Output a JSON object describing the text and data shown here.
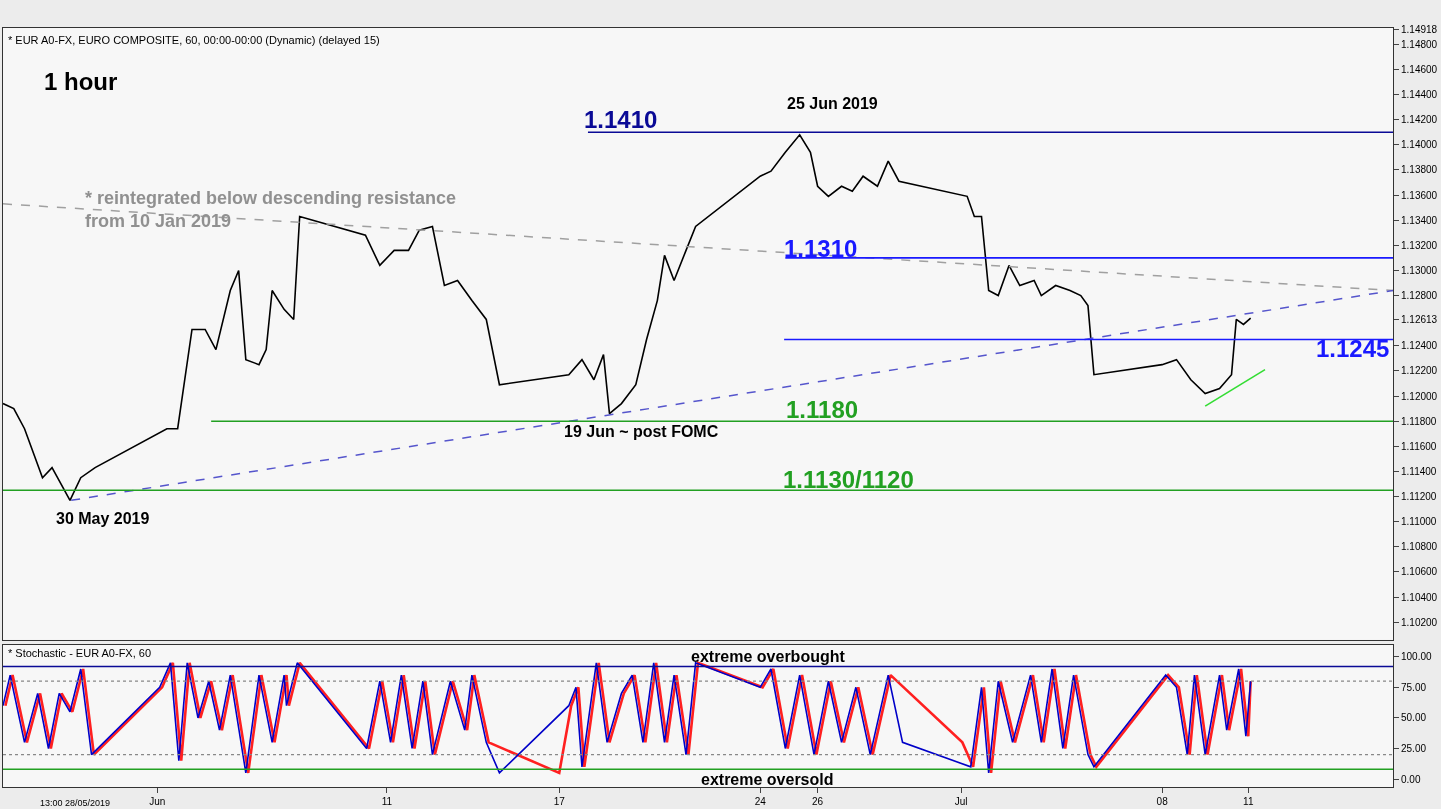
{
  "chart_data": [
    {
      "type": "line",
      "xlim": [
        "2019-05-28T15:00",
        "2019-07-16T01:00"
      ],
      "ylim": [
        1.1006,
        1.1493
      ],
      "tick_labels": "y",
      "yticks": [
        {
          "value": 1.102,
          "label": "1.10200"
        },
        {
          "value": 1.104,
          "label": "1.10400"
        },
        {
          "value": 1.106,
          "label": "1.10600"
        },
        {
          "value": 1.108,
          "label": "1.10800"
        },
        {
          "value": 1.11,
          "label": "1.11000"
        },
        {
          "value": 1.112,
          "label": "1.11200"
        },
        {
          "value": 1.114,
          "label": "1.11400"
        },
        {
          "value": 1.116,
          "label": "1.11600"
        },
        {
          "value": 1.118,
          "label": "1.11800"
        },
        {
          "value": 1.12,
          "label": "1.12000"
        },
        {
          "value": 1.122,
          "label": "1.12200"
        },
        {
          "value": 1.124,
          "label": "1.12400"
        },
        {
          "value": 1.12613,
          "label": "1.12613"
        },
        {
          "value": 1.128,
          "label": "1.12800"
        },
        {
          "value": 1.13,
          "label": "1.13000"
        },
        {
          "value": 1.132,
          "label": "1.13200"
        },
        {
          "value": 1.134,
          "label": "1.13400"
        },
        {
          "value": 1.136,
          "label": "1.13600"
        },
        {
          "value": 1.138,
          "label": "1.13800"
        },
        {
          "value": 1.14,
          "label": "1.14000"
        },
        {
          "value": 1.142,
          "label": "1.14200"
        },
        {
          "value": 1.144,
          "label": "1.14400"
        },
        {
          "value": 1.146,
          "label": "1.14600"
        },
        {
          "value": 1.148,
          "label": "1.14800"
        },
        {
          "value": 1.14918,
          "label": "1.14918"
        }
      ],
      "series": [
        {
          "color": "#000000",
          "x": [
            "2019-05-28T15:00",
            "2019-05-29T00:00",
            "2019-05-29T09:00",
            "2019-05-30T00:00",
            "2019-05-30T08:00",
            "2019-05-30T23:00",
            "2019-05-31T08:00",
            "2019-05-31T20:00",
            "2019-06-03T08:00",
            "2019-06-03T17:00",
            "2019-06-04T05:00",
            "2019-06-04T16:00",
            "2019-06-05T01:00",
            "2019-06-05T13:00",
            "2019-06-05T20:00",
            "2019-06-06T02:00",
            "2019-06-06T13:00",
            "2019-06-06T19:00",
            "2019-06-07T00:00",
            "2019-06-07T10:00",
            "2019-06-07T18:00",
            "2019-06-07T23:00",
            "2019-06-10T06:00",
            "2019-06-10T18:00",
            "2019-06-11T06:00",
            "2019-06-11T18:00",
            "2019-06-12T03:00",
            "2019-06-12T14:00",
            "2019-06-13T00:00",
            "2019-06-13T11:00",
            "2019-06-13T23:00",
            "2019-06-14T11:00",
            "2019-06-14T22:00",
            "2019-06-17T08:00",
            "2019-06-17T19:00",
            "2019-06-18T05:00",
            "2019-06-18T13:00",
            "2019-06-18T18:00",
            "2019-06-19T04:00",
            "2019-06-19T16:00",
            "2019-06-20T01:00",
            "2019-06-20T10:00",
            "2019-06-20T16:00",
            "2019-06-21T00:00",
            "2019-06-21T10:00",
            "2019-06-21T18:00",
            "2019-06-24T00:00",
            "2019-06-24T09:00",
            "2019-06-24T21:00",
            "2019-06-25T09:00",
            "2019-06-25T18:00",
            "2019-06-26T00:00",
            "2019-06-26T09:00",
            "2019-06-26T20:00",
            "2019-06-27T05:00",
            "2019-06-27T14:00",
            "2019-06-28T02:00",
            "2019-06-28T11:00",
            "2019-06-28T20:00",
            "2019-07-01T05:00",
            "2019-07-01T11:00",
            "2019-07-01T17:00",
            "2019-07-01T23:00",
            "2019-07-02T07:00",
            "2019-07-02T16:00",
            "2019-07-03T01:00",
            "2019-07-03T13:00",
            "2019-07-03T19:00",
            "2019-07-04T07:00",
            "2019-07-04T19:00",
            "2019-07-05T04:00",
            "2019-07-05T10:00",
            "2019-07-05T15:00",
            "2019-07-08T00:00",
            "2019-07-08T12:00",
            "2019-07-09T00:00",
            "2019-07-09T12:00",
            "2019-07-10T00:00",
            "2019-07-10T10:00",
            "2019-07-10T14:00",
            "2019-07-10T20:00",
            "2019-07-11T02:00"
          ],
          "values": [
            1.1194,
            1.119,
            1.1174,
            1.1135,
            1.1143,
            1.1117,
            1.1135,
            1.1143,
            1.1174,
            1.1174,
            1.1253,
            1.1253,
            1.1237,
            1.1284,
            1.13,
            1.1229,
            1.1225,
            1.1237,
            1.1284,
            1.1269,
            1.1261,
            1.1343,
            1.1328,
            1.1304,
            1.1316,
            1.1316,
            1.1332,
            1.1335,
            1.1288,
            1.1292,
            1.1276,
            1.1261,
            1.1209,
            1.1217,
            1.1229,
            1.1213,
            1.1233,
            1.1186,
            1.1194,
            1.1209,
            1.1245,
            1.1276,
            1.1312,
            1.1292,
            1.1316,
            1.1335,
            1.1375,
            1.1379,
            1.1394,
            1.1408,
            1.1394,
            1.1367,
            1.1359,
            1.1367,
            1.1363,
            1.1375,
            1.1367,
            1.1387,
            1.1371,
            1.1359,
            1.1343,
            1.1343,
            1.1284,
            1.128,
            1.1304,
            1.1288,
            1.1292,
            1.128,
            1.1288,
            1.1284,
            1.128,
            1.1272,
            1.1217,
            1.1225,
            1.1229,
            1.1213,
            1.1202,
            1.1206,
            1.1217,
            1.1261,
            1.1257,
            1.1262
          ]
        },
        {
          "color": "#a0a0a0",
          "line_style": "dashed",
          "x": [
            "2019-05-28T15:00",
            "2019-07-16T01:00"
          ],
          "values": [
            1.1353,
            1.1284
          ]
        },
        {
          "color": "#5555cc",
          "line_style": "dashed",
          "x": [
            "2019-05-31T00:00",
            "2019-07-16T01:00"
          ],
          "values": [
            1.1117,
            1.1284
          ]
        },
        {
          "color": "#33dd33",
          "x": [
            "2019-07-09T12:00",
            "2019-07-11T14:00"
          ],
          "values": [
            1.1192,
            1.1221
          ]
        },
        {
          "color": "#0a0a96",
          "x": [
            "2019-06-18T00:00",
            "2019-07-16T01:00"
          ],
          "values": [
            1.141,
            1.141
          ]
        },
        {
          "color": "#1a1aff",
          "x": [
            "2019-06-24T21:00",
            "2019-07-16T01:00"
          ],
          "values": [
            1.131,
            1.131
          ]
        },
        {
          "color": "#1a1aff",
          "x": [
            "2019-06-24T20:00",
            "2019-07-16T01:00"
          ],
          "values": [
            1.1245,
            1.1245
          ]
        },
        {
          "color": "#22a022",
          "x": [
            "2019-06-04T21:00",
            "2019-07-16T01:00"
          ],
          "values": [
            1.118,
            1.118
          ]
        },
        {
          "color": "#22a022",
          "x": [
            "2019-05-28T15:00",
            "2019-07-16T01:00"
          ],
          "values": [
            1.1125,
            1.1125
          ]
        }
      ],
      "annotations": [
        "* EUR A0-FX, EURO COMPOSITE, 60, 00:00-00:00 (Dynamic) (delayed 15)",
        "1 hour",
        "25 Jun 2019",
        "19 Jun ~ post FOMC",
        "30 May 2019",
        "* reintegrated below descending resistance\nfrom 10 Jan 2019",
        "1.1410",
        "1.1310",
        "1.1245",
        "1.1180",
        "1.1130/1120"
      ]
    },
    {
      "type": "line",
      "xlim": [
        "2019-05-28T15:00",
        "2019-07-16T01:00"
      ],
      "ylim": [
        -6.5,
        109.8
      ],
      "xticks": [
        {
          "value": "2019-06-03",
          "label": "Jun"
        },
        {
          "value": "2019-06-11",
          "label": "11"
        },
        {
          "value": "2019-06-17",
          "label": "17"
        },
        {
          "value": "2019-06-24",
          "label": "24"
        },
        {
          "value": "2019-06-26",
          "label": "26"
        },
        {
          "value": "2019-07-01",
          "label": "Jul"
        },
        {
          "value": "2019-07-08",
          "label": "08"
        },
        {
          "value": "2019-07-11",
          "label": "11"
        }
      ],
      "yticks": [
        {
          "value": 0,
          "label": "0.00"
        },
        {
          "value": 25,
          "label": "25.00"
        },
        {
          "value": 50,
          "label": "50.00"
        },
        {
          "value": 75,
          "label": "75.00"
        },
        {
          "value": 100,
          "label": "100.00"
        }
      ],
      "series": [
        {
          "color": "#ff2020",
          "x": [
            "2019-05-28T17:00",
            "2019-05-28T23:00",
            "2019-05-29T11:00",
            "2019-05-29T22:00",
            "2019-05-30T07:00",
            "2019-05-30T16:00",
            "2019-05-31T01:00",
            "2019-05-31T10:00",
            "2019-05-31T19:00",
            "2019-06-03T04:00",
            "2019-06-03T13:00",
            "2019-06-03T20:00",
            "2019-06-04T03:00",
            "2019-06-04T12:00",
            "2019-06-04T21:00",
            "2019-06-05T06:00",
            "2019-06-05T15:00",
            "2019-06-06T04:00",
            "2019-06-06T15:00",
            "2019-06-07T02:00",
            "2019-06-07T12:00",
            "2019-06-07T14:00",
            "2019-06-07T23:00",
            "2019-06-10T09:00",
            "2019-06-10T20:00",
            "2019-06-11T05:00",
            "2019-06-11T14:00",
            "2019-06-11T23:00",
            "2019-06-12T08:00",
            "2019-06-12T16:00",
            "2019-06-13T07:00",
            "2019-06-13T19:00",
            "2019-06-14T01:00",
            "2019-06-14T13:00",
            "2019-06-17T00:00",
            "2019-06-17T10:00",
            "2019-06-17T16:00",
            "2019-06-17T21:00",
            "2019-06-18T09:00",
            "2019-06-18T18:00",
            "2019-06-19T06:00",
            "2019-06-19T15:00",
            "2019-06-20T00:00",
            "2019-06-20T09:00",
            "2019-06-20T18:00",
            "2019-06-21T02:00",
            "2019-06-21T12:00",
            "2019-06-21T20:00",
            "2019-06-24T02:00",
            "2019-06-24T11:00",
            "2019-06-24T23:00",
            "2019-06-25T11:00",
            "2019-06-25T23:00",
            "2019-06-26T11:00",
            "2019-06-26T22:00",
            "2019-06-27T10:00",
            "2019-06-27T22:00",
            "2019-06-28T13:00",
            "2019-07-01T01:00",
            "2019-07-01T10:00",
            "2019-07-01T19:00",
            "2019-07-02T01:00",
            "2019-07-02T09:00",
            "2019-07-02T21:00",
            "2019-07-03T12:00",
            "2019-07-03T21:00",
            "2019-07-04T06:00",
            "2019-07-04T15:00",
            "2019-07-05T00:00",
            "2019-07-05T12:00",
            "2019-07-05T17:00",
            "2019-07-08T05:00",
            "2019-07-08T14:00",
            "2019-07-08T23:00",
            "2019-07-09T05:00",
            "2019-07-09T14:00",
            "2019-07-10T02:00",
            "2019-07-10T08:00",
            "2019-07-10T18:00",
            "2019-07-11T00:00",
            "2019-07-11T02:00"
          ],
          "values": [
            60,
            85,
            30,
            70,
            25,
            70,
            55,
            90,
            20,
            75,
            95,
            15,
            95,
            50,
            80,
            40,
            85,
            5,
            85,
            30,
            85,
            60,
            95,
            25,
            80,
            30,
            85,
            25,
            80,
            20,
            80,
            40,
            85,
            30,
            5,
            60,
            75,
            10,
            95,
            30,
            70,
            85,
            30,
            95,
            30,
            85,
            20,
            95,
            75,
            90,
            25,
            85,
            20,
            80,
            30,
            75,
            20,
            85,
            30,
            10,
            75,
            5,
            80,
            30,
            85,
            30,
            90,
            25,
            85,
            20,
            10,
            85,
            75,
            20,
            85,
            20,
            85,
            40,
            90,
            35,
            80
          ]
        },
        {
          "color": "#0000c8",
          "x": [
            "2019-05-28T15:00",
            "2019-05-28T21:00",
            "2019-05-29T09:00",
            "2019-05-29T20:00",
            "2019-05-30T05:00",
            "2019-05-30T14:00",
            "2019-05-30T23:00",
            "2019-05-31T08:00",
            "2019-05-31T17:00",
            "2019-06-03T02:00",
            "2019-06-03T11:00",
            "2019-06-03T18:00",
            "2019-06-04T01:00",
            "2019-06-04T10:00",
            "2019-06-04T19:00",
            "2019-06-05T04:00",
            "2019-06-05T13:00",
            "2019-06-06T02:00",
            "2019-06-06T13:00",
            "2019-06-07T00:00",
            "2019-06-07T10:00",
            "2019-06-07T12:00",
            "2019-06-07T21:00",
            "2019-06-10T07:00",
            "2019-06-10T18:00",
            "2019-06-11T03:00",
            "2019-06-11T12:00",
            "2019-06-11T21:00",
            "2019-06-12T06:00",
            "2019-06-12T14:00",
            "2019-06-13T05:00",
            "2019-06-13T17:00",
            "2019-06-13T23:00",
            "2019-06-14T11:00",
            "2019-06-14T22:00",
            "2019-06-17T08:00",
            "2019-06-17T14:00",
            "2019-06-17T19:00",
            "2019-06-18T07:00",
            "2019-06-18T16:00",
            "2019-06-19T04:00",
            "2019-06-19T13:00",
            "2019-06-19T22:00",
            "2019-06-20T07:00",
            "2019-06-20T16:00",
            "2019-06-21T00:00",
            "2019-06-21T10:00",
            "2019-06-21T18:00",
            "2019-06-24T00:00",
            "2019-06-24T09:00",
            "2019-06-24T21:00",
            "2019-06-25T09:00",
            "2019-06-25T21:00",
            "2019-06-26T09:00",
            "2019-06-26T20:00",
            "2019-06-27T08:00",
            "2019-06-27T20:00",
            "2019-06-28T11:00",
            "2019-06-28T23:00",
            "2019-07-01T08:00",
            "2019-07-01T17:00",
            "2019-07-01T23:00",
            "2019-07-02T07:00",
            "2019-07-02T19:00",
            "2019-07-03T10:00",
            "2019-07-03T19:00",
            "2019-07-04T04:00",
            "2019-07-04T13:00",
            "2019-07-04T22:00",
            "2019-07-05T10:00",
            "2019-07-05T15:00",
            "2019-07-08T03:00",
            "2019-07-08T12:00",
            "2019-07-08T21:00",
            "2019-07-09T03:00",
            "2019-07-09T12:00",
            "2019-07-10T00:00",
            "2019-07-10T06:00",
            "2019-07-10T16:00",
            "2019-07-10T22:00",
            "2019-07-11T02:00"
          ],
          "values": [
            60,
            85,
            30,
            70,
            25,
            70,
            55,
            90,
            20,
            75,
            95,
            15,
            95,
            50,
            80,
            40,
            85,
            5,
            85,
            30,
            85,
            60,
            95,
            25,
            80,
            30,
            85,
            25,
            80,
            20,
            80,
            40,
            85,
            30,
            5,
            60,
            75,
            10,
            95,
            30,
            70,
            85,
            30,
            95,
            30,
            85,
            20,
            95,
            75,
            90,
            25,
            85,
            20,
            80,
            30,
            75,
            20,
            85,
            30,
            10,
            75,
            5,
            80,
            30,
            85,
            30,
            90,
            25,
            85,
            20,
            10,
            85,
            75,
            20,
            85,
            20,
            85,
            40,
            90,
            35,
            80
          ]
        }
      ],
      "ref_lines": [
        {
          "axis": "y",
          "value": 92,
          "label": "extreme overbought",
          "color": "#0a0a96"
        },
        {
          "axis": "y",
          "value": 8,
          "label": "extreme oversold",
          "color": "#22a022"
        },
        {
          "axis": "y",
          "value": 80,
          "color": "#888888",
          "line_style": "dotted"
        },
        {
          "axis": "y",
          "value": 20,
          "color": "#888888",
          "line_style": "dotted"
        }
      ],
      "annotations": [
        "* Stochastic - EUR A0-FX, 60",
        "13:00 28/05/2019"
      ]
    }
  ]
}
